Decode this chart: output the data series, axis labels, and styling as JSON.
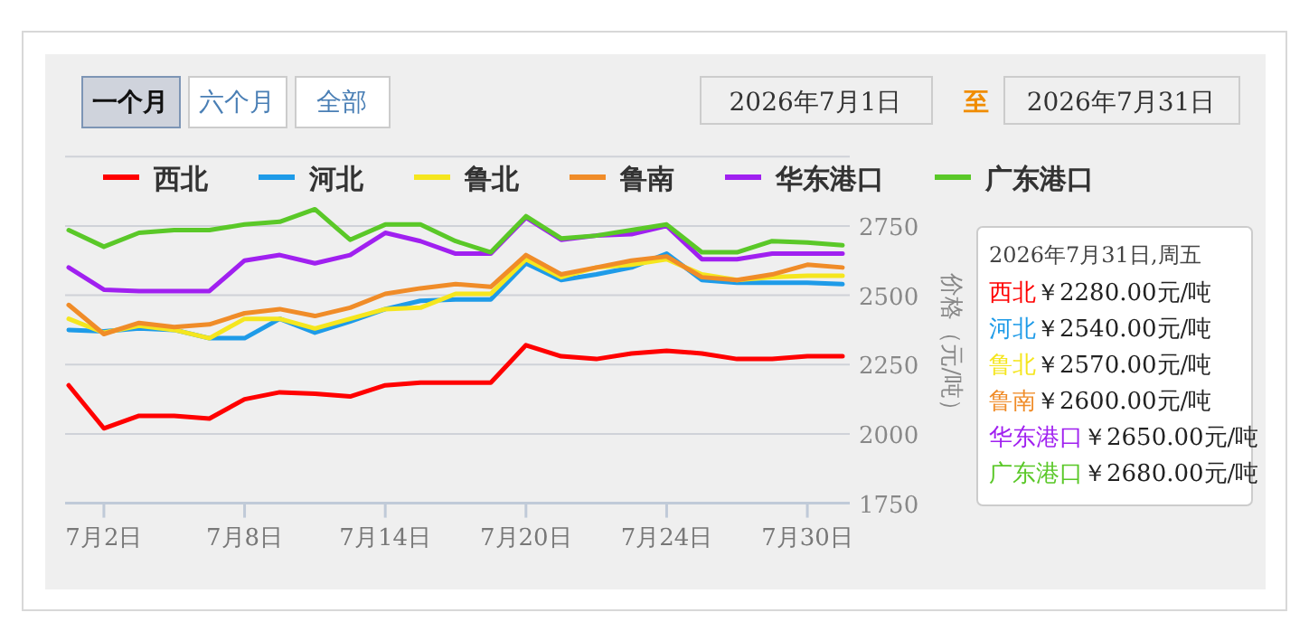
{
  "chart_data": {
    "type": "line",
    "ylabel": "价格（元/吨）",
    "categories": [
      null,
      "7月2日",
      null,
      null,
      null,
      "7月8日",
      null,
      null,
      null,
      "7月14日",
      null,
      null,
      null,
      "7月20日",
      null,
      null,
      null,
      "7月24日",
      null,
      null,
      null,
      "7月30日",
      null
    ],
    "series": [
      {
        "name": "西北",
        "color": "#ff0000",
        "values": [
          2175,
          2020,
          2065,
          2065,
          2055,
          2125,
          2150,
          2145,
          2135,
          2175,
          2185,
          2185,
          2185,
          2320,
          2280,
          2270,
          2290,
          2300,
          2290,
          2270,
          2270,
          2280,
          2280
        ]
      },
      {
        "name": "河北",
        "color": "#1e9be8",
        "values": [
          2375,
          2370,
          2380,
          2375,
          2345,
          2345,
          2415,
          2365,
          2405,
          2450,
          2480,
          2485,
          2485,
          2615,
          2555,
          2575,
          2600,
          2650,
          2555,
          2545,
          2545,
          2545,
          2540
        ]
      },
      {
        "name": "鲁北",
        "color": "#f5e61e",
        "values": [
          2415,
          2365,
          2390,
          2375,
          2345,
          2415,
          2415,
          2380,
          2415,
          2450,
          2455,
          2505,
          2505,
          2630,
          2565,
          2600,
          2610,
          2630,
          2575,
          2555,
          2565,
          2570,
          2570
        ]
      },
      {
        "name": "鲁南",
        "color": "#f08c28",
        "values": [
          2465,
          2360,
          2400,
          2385,
          2395,
          2435,
          2450,
          2425,
          2455,
          2505,
          2525,
          2540,
          2530,
          2645,
          2575,
          2600,
          2625,
          2640,
          2565,
          2555,
          2575,
          2610,
          2600
        ]
      },
      {
        "name": "华东港口",
        "color": "#a020f0",
        "values": [
          2600,
          2520,
          2515,
          2515,
          2515,
          2625,
          2645,
          2615,
          2645,
          2725,
          2695,
          2650,
          2650,
          2780,
          2700,
          2715,
          2720,
          2750,
          2630,
          2630,
          2650,
          2650,
          2650
        ]
      },
      {
        "name": "广东港口",
        "color": "#5ac828",
        "values": [
          2735,
          2675,
          2725,
          2735,
          2735,
          2755,
          2765,
          2810,
          2700,
          2755,
          2755,
          2695,
          2655,
          2785,
          2705,
          2715,
          2735,
          2755,
          2655,
          2655,
          2695,
          2690,
          2680
        ]
      }
    ],
    "ylim": [
      1750,
      3000
    ],
    "yticks": [
      1750,
      2000,
      2250,
      2500,
      2750,
      {
        "value": 3000,
        "label": null
      }
    ],
    "grid": "y",
    "legend": "top",
    "marker": "none",
    "line_style": "solid",
    "annotations": [
      "一个月",
      "六个月",
      "全部",
      "2026年7月1日",
      "至",
      "2026年7月31日",
      "2026年7月31日,周五",
      "￥2280.00元/吨",
      "￥2540.00元/吨",
      "￥2570.00元/吨",
      "￥2600.00元/吨",
      "￥2650.00元/吨",
      "￥2680.00元/吨"
    ]
  }
}
